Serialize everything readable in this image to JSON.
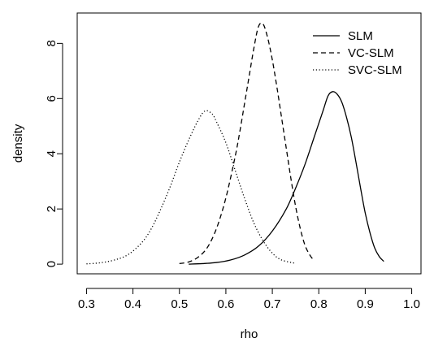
{
  "chart_data": {
    "type": "line",
    "title": "",
    "xlabel": "rho",
    "ylabel": "density",
    "xlim": [
      0.28,
      1.02
    ],
    "ylim": [
      -0.35,
      9.1
    ],
    "x_ticks": [
      0.3,
      0.4,
      0.5,
      0.6,
      0.7,
      0.8,
      0.9,
      1.0
    ],
    "x_tick_labels": [
      "0.3",
      "0.4",
      "0.5",
      "0.6",
      "0.7",
      "0.8",
      "0.9",
      "1.0"
    ],
    "y_ticks": [
      0,
      2,
      4,
      6,
      8
    ],
    "y_tick_labels": [
      "0",
      "2",
      "4",
      "6",
      "8"
    ],
    "grid": false,
    "legend_position": "top-right",
    "series": [
      {
        "name": "SLM",
        "line_style": "solid",
        "color": "#000000",
        "points": [
          [
            0.52,
            0.0
          ],
          [
            0.55,
            0.02
          ],
          [
            0.58,
            0.06
          ],
          [
            0.61,
            0.15
          ],
          [
            0.64,
            0.33
          ],
          [
            0.67,
            0.65
          ],
          [
            0.7,
            1.2
          ],
          [
            0.73,
            2.0
          ],
          [
            0.75,
            2.75
          ],
          [
            0.77,
            3.6
          ],
          [
            0.79,
            4.6
          ],
          [
            0.8,
            5.1
          ],
          [
            0.81,
            5.6
          ],
          [
            0.82,
            6.1
          ],
          [
            0.83,
            6.25
          ],
          [
            0.84,
            6.15
          ],
          [
            0.85,
            5.85
          ],
          [
            0.86,
            5.3
          ],
          [
            0.87,
            4.6
          ],
          [
            0.88,
            3.7
          ],
          [
            0.89,
            2.75
          ],
          [
            0.9,
            1.85
          ],
          [
            0.91,
            1.15
          ],
          [
            0.92,
            0.6
          ],
          [
            0.93,
            0.28
          ],
          [
            0.94,
            0.1
          ]
        ]
      },
      {
        "name": "VC-SLM",
        "line_style": "dashed",
        "color": "#000000",
        "points": [
          [
            0.5,
            0.02
          ],
          [
            0.52,
            0.08
          ],
          [
            0.54,
            0.25
          ],
          [
            0.56,
            0.6
          ],
          [
            0.58,
            1.3
          ],
          [
            0.6,
            2.4
          ],
          [
            0.62,
            3.9
          ],
          [
            0.63,
            4.8
          ],
          [
            0.64,
            5.8
          ],
          [
            0.65,
            6.8
          ],
          [
            0.66,
            7.8
          ],
          [
            0.67,
            8.6
          ],
          [
            0.68,
            8.7
          ],
          [
            0.69,
            8.2
          ],
          [
            0.7,
            7.4
          ],
          [
            0.71,
            6.4
          ],
          [
            0.72,
            5.3
          ],
          [
            0.73,
            4.2
          ],
          [
            0.74,
            3.1
          ],
          [
            0.75,
            2.1
          ],
          [
            0.76,
            1.3
          ],
          [
            0.77,
            0.7
          ],
          [
            0.78,
            0.35
          ],
          [
            0.79,
            0.12
          ]
        ]
      },
      {
        "name": "SVC-SLM",
        "line_style": "dotted",
        "color": "#000000",
        "points": [
          [
            0.3,
            0.01
          ],
          [
            0.33,
            0.05
          ],
          [
            0.36,
            0.15
          ],
          [
            0.39,
            0.35
          ],
          [
            0.42,
            0.8
          ],
          [
            0.44,
            1.3
          ],
          [
            0.46,
            2.0
          ],
          [
            0.48,
            2.8
          ],
          [
            0.5,
            3.7
          ],
          [
            0.52,
            4.5
          ],
          [
            0.54,
            5.2
          ],
          [
            0.555,
            5.55
          ],
          [
            0.57,
            5.45
          ],
          [
            0.58,
            5.15
          ],
          [
            0.6,
            4.4
          ],
          [
            0.62,
            3.4
          ],
          [
            0.64,
            2.4
          ],
          [
            0.66,
            1.5
          ],
          [
            0.68,
            0.85
          ],
          [
            0.7,
            0.4
          ],
          [
            0.72,
            0.15
          ],
          [
            0.75,
            0.03
          ]
        ]
      }
    ]
  }
}
